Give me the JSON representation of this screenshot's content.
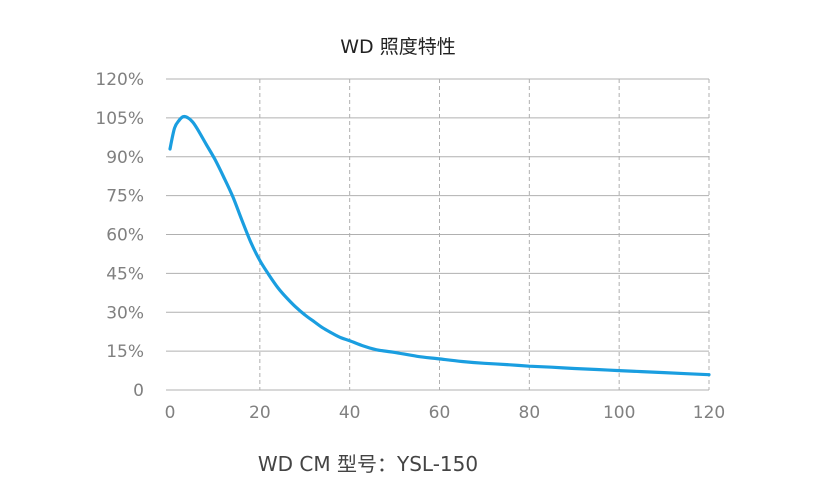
{
  "chart_data": {
    "type": "line",
    "title": "WD 照度特性",
    "caption": "WD CM 型号：YSL-150",
    "xlabel": "",
    "ylabel": "",
    "xlim": [
      0,
      120
    ],
    "ylim": [
      0,
      120
    ],
    "x_ticks": [
      0,
      20,
      40,
      60,
      80,
      100,
      120
    ],
    "x_tick_labels": [
      "0",
      "20",
      "40",
      "60",
      "80",
      "100",
      "120"
    ],
    "y_ticks": [
      0,
      15,
      30,
      45,
      60,
      75,
      90,
      105,
      120
    ],
    "y_tick_labels": [
      "0",
      "15%",
      "30%",
      "45%",
      "60%",
      "75%",
      "90%",
      "105%",
      "120%"
    ],
    "grid": {
      "horizontal": "solid",
      "vertical": "dashed"
    },
    "legend": "none",
    "colors": {
      "line": "#1a9ee0",
      "grid": "#b0b0b0",
      "tick_text": "#808080"
    },
    "series": [
      {
        "x": [
          0,
          1,
          2,
          3,
          4,
          5,
          6,
          8,
          10,
          12,
          14,
          16,
          18,
          20,
          22,
          24,
          26,
          28,
          30,
          32,
          34,
          36,
          38,
          40,
          43,
          46,
          50,
          55,
          60,
          65,
          70,
          75,
          80,
          85,
          90,
          95,
          100,
          105,
          110,
          115,
          120
        ],
        "y": [
          93,
          101,
          104,
          105.5,
          105,
          103.5,
          101,
          95,
          89,
          82,
          74.5,
          65.5,
          57,
          50,
          44.5,
          39.5,
          35.5,
          32,
          29,
          26.5,
          24,
          22,
          20.2,
          19,
          17,
          15.5,
          14.5,
          13,
          12,
          11,
          10.3,
          9.8,
          9.2,
          8.8,
          8.3,
          7.9,
          7.5,
          7.1,
          6.7,
          6.3,
          5.9
        ]
      }
    ]
  }
}
